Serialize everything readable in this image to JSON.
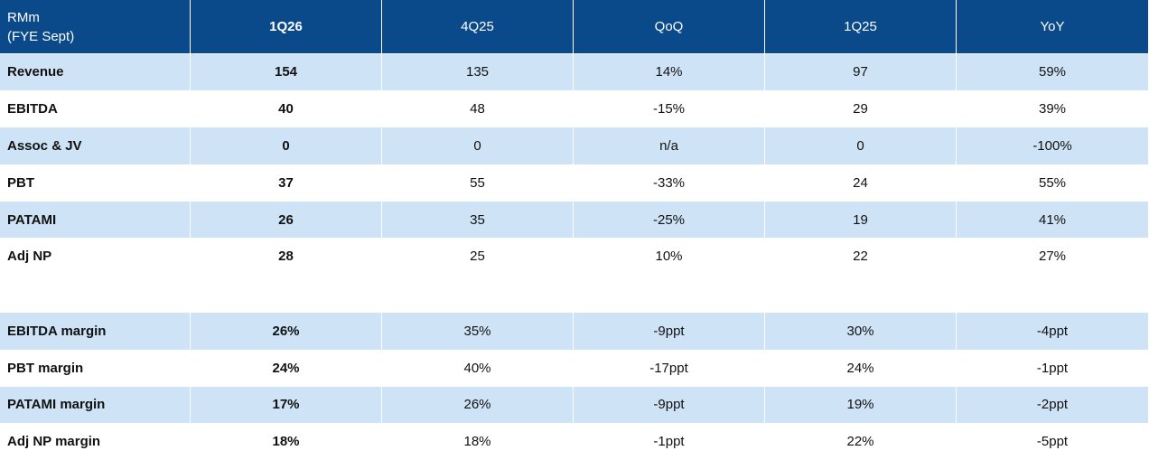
{
  "table": {
    "corner": [
      "RMm",
      "(FYE Sept)"
    ],
    "columns": [
      "1Q26",
      "4Q25",
      "QoQ",
      "1Q25",
      "YoY"
    ],
    "sections": [
      {
        "rows": [
          [
            "Revenue",
            "154",
            "135",
            "14%",
            "97",
            "59%"
          ],
          [
            "EBITDA",
            "40",
            "48",
            "-15%",
            "29",
            "39%"
          ],
          [
            "Assoc & JV",
            "0",
            "0",
            "n/a",
            "0",
            "-100%"
          ],
          [
            "PBT",
            "37",
            "55",
            "-33%",
            "24",
            "55%"
          ],
          [
            "PATAMI",
            "26",
            "35",
            "-25%",
            "19",
            "41%"
          ],
          [
            "Adj NP",
            "28",
            "25",
            "10%",
            "22",
            "27%"
          ]
        ]
      },
      {
        "rows": [
          [
            "EBITDA margin",
            "26%",
            "35%",
            "-9ppt",
            "30%",
            "-4ppt"
          ],
          [
            "PBT margin",
            "24%",
            "40%",
            "-17ppt",
            "24%",
            "-1ppt"
          ],
          [
            "PATAMI margin",
            "17%",
            "26%",
            "-9ppt",
            "19%",
            "-2ppt"
          ],
          [
            "Adj NP margin",
            "18%",
            "18%",
            "-1ppt",
            "22%",
            "-5ppt"
          ]
        ]
      }
    ]
  }
}
